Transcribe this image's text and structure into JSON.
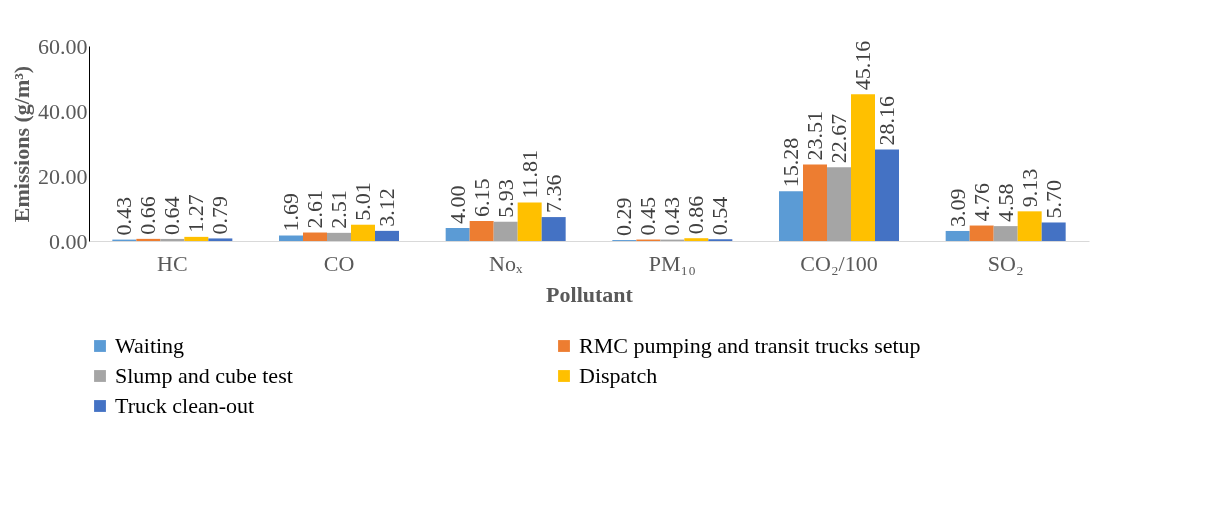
{
  "chart_data": {
    "type": "bar",
    "xlabel": "Pollutant",
    "ylabel": "Emissions (g/m³)",
    "categories": [
      "HC",
      "CO",
      "Noₓ",
      "PM₁₀",
      "CO₂/100",
      "SO₂"
    ],
    "series": [
      {
        "name": "Waiting",
        "color": "#5b9bd5",
        "values": [
          0.43,
          1.69,
          4.0,
          0.29,
          15.28,
          3.09
        ],
        "value_labels": [
          "0.43",
          "1.69",
          "4.00",
          "0.29",
          "15.28",
          "3.09"
        ]
      },
      {
        "name": "RMC pumping and transit trucks setup",
        "color": "#ed7d31",
        "values": [
          0.66,
          2.61,
          6.15,
          0.45,
          23.51,
          4.76
        ],
        "value_labels": [
          "0.66",
          "2.61",
          "6.15",
          "0.45",
          "23.51",
          "4.76"
        ]
      },
      {
        "name": " Slump and cube test",
        "color": "#a5a5a5",
        "values": [
          0.64,
          2.51,
          5.93,
          0.43,
          22.67,
          4.58
        ],
        "value_labels": [
          "0.64",
          "2.51",
          "5.93",
          "0.43",
          "22.67",
          "4.58"
        ]
      },
      {
        "name": "Dispatch",
        "color": "#ffc000",
        "values": [
          1.27,
          5.01,
          11.81,
          0.86,
          45.16,
          9.13
        ],
        "value_labels": [
          "1.27",
          "5.01",
          "11.81",
          "0.86",
          "45.16",
          "9.13"
        ]
      },
      {
        "name": "Truck clean-out",
        "color": "#4472c4",
        "values": [
          0.79,
          3.12,
          7.36,
          0.54,
          28.16,
          5.7
        ],
        "value_labels": [
          "0.79",
          "3.12",
          "7.36",
          "0.54",
          "28.16",
          "5.70"
        ]
      }
    ],
    "ylim": [
      0,
      60
    ],
    "yticks": [
      {
        "value": 0,
        "label": "0.00"
      },
      {
        "value": 20,
        "label": "20.00"
      },
      {
        "value": 40,
        "label": "40.00"
      },
      {
        "value": 60,
        "label": "60.00"
      }
    ],
    "grid": false,
    "legend": "bottom"
  }
}
